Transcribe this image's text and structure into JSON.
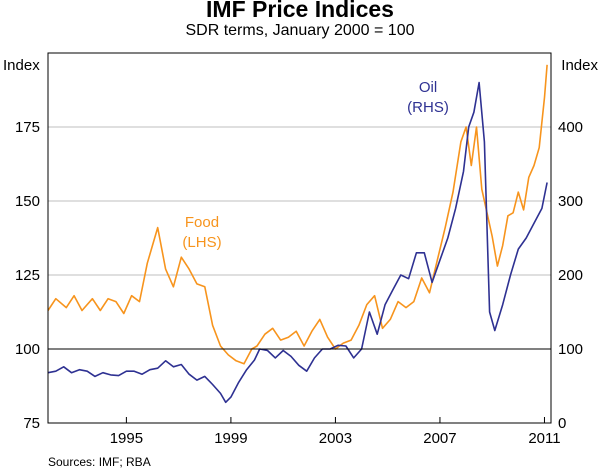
{
  "header": {
    "title": "IMF Price Indices",
    "subtitle": "SDR terms, January 2000 = 100"
  },
  "footer": {
    "source": "Sources: IMF; RBA"
  },
  "colors": {
    "food": "#f7941d",
    "oil": "#2e3192",
    "axis": "#000000",
    "grid": "#bfbfbf"
  },
  "chart_data": {
    "type": "line",
    "title": "IMF Price Indices",
    "subtitle": "SDR terms, January 2000 = 100",
    "left_axis": {
      "label": "Index",
      "ylim": [
        75,
        200
      ],
      "ticks": [
        75,
        100,
        125,
        150,
        175
      ]
    },
    "right_axis": {
      "label": "Index",
      "ylim": [
        0,
        500
      ],
      "ticks": [
        0,
        100,
        200,
        300,
        400
      ]
    },
    "x_axis": {
      "xlim": [
        1992.0,
        2011.25
      ],
      "ticks": [
        1995,
        1999,
        2003,
        2007,
        2011
      ]
    },
    "grid": "horizontal",
    "reference_line": 100,
    "series": [
      {
        "name": "Food",
        "label_line1": "Food",
        "label_line2": "(LHS)",
        "axis": "left",
        "x": [
          1992.0,
          1992.3,
          1992.7,
          1993.0,
          1993.3,
          1993.7,
          1994.0,
          1994.3,
          1994.6,
          1994.9,
          1995.2,
          1995.5,
          1995.8,
          1996.0,
          1996.2,
          1996.5,
          1996.8,
          1997.1,
          1997.4,
          1997.7,
          1998.0,
          1998.3,
          1998.6,
          1998.9,
          1999.2,
          1999.5,
          1999.8,
          2000.0,
          2000.3,
          2000.6,
          2000.9,
          2001.2,
          2001.5,
          2001.8,
          2002.1,
          2002.4,
          2002.7,
          2003.0,
          2003.3,
          2003.6,
          2003.9,
          2004.2,
          2004.5,
          2004.8,
          2005.1,
          2005.4,
          2005.7,
          2006.0,
          2006.3,
          2006.6,
          2006.9,
          2007.2,
          2007.5,
          2007.8,
          2008.0,
          2008.2,
          2008.4,
          2008.6,
          2008.8,
          2009.0,
          2009.2,
          2009.4,
          2009.6,
          2009.8,
          2010.0,
          2010.2,
          2010.4,
          2010.6,
          2010.8,
          2011.0,
          2011.1
        ],
        "values": [
          113,
          117,
          114,
          118,
          113,
          117,
          113,
          117,
          116,
          112,
          118,
          116,
          129,
          135,
          141,
          127,
          121,
          131,
          127,
          122,
          121,
          108,
          101,
          98,
          96,
          95,
          100,
          101,
          105,
          107,
          103,
          104,
          106,
          101,
          106,
          110,
          104,
          100,
          102,
          103,
          108,
          115,
          118,
          107,
          110,
          116,
          114,
          116,
          124,
          119,
          130,
          141,
          153,
          170,
          175,
          162,
          175,
          154,
          146,
          138,
          128,
          135,
          145,
          146,
          153,
          147,
          158,
          162,
          168,
          185,
          196
        ]
      },
      {
        "name": "Oil",
        "label_line1": "Oil",
        "label_line2": "(RHS)",
        "axis": "right",
        "x": [
          1992.0,
          1992.3,
          1992.6,
          1992.9,
          1993.2,
          1993.5,
          1993.8,
          1994.1,
          1994.4,
          1994.7,
          1995.0,
          1995.3,
          1995.6,
          1995.9,
          1996.2,
          1996.5,
          1996.8,
          1997.1,
          1997.4,
          1997.7,
          1998.0,
          1998.3,
          1998.6,
          1998.8,
          1999.0,
          1999.3,
          1999.6,
          1999.9,
          2000.1,
          2000.4,
          2000.7,
          2001.0,
          2001.3,
          2001.6,
          2001.9,
          2002.2,
          2002.5,
          2002.8,
          2003.1,
          2003.4,
          2003.7,
          2004.0,
          2004.3,
          2004.6,
          2004.9,
          2005.2,
          2005.5,
          2005.8,
          2006.1,
          2006.4,
          2006.7,
          2007.0,
          2007.3,
          2007.6,
          2007.9,
          2008.1,
          2008.3,
          2008.5,
          2008.7,
          2008.9,
          2009.1,
          2009.4,
          2009.7,
          2010.0,
          2010.3,
          2010.6,
          2010.9,
          2011.1
        ],
        "values": [
          68,
          70,
          76,
          68,
          72,
          70,
          63,
          68,
          65,
          64,
          70,
          70,
          66,
          72,
          74,
          84,
          76,
          79,
          66,
          58,
          63,
          52,
          40,
          28,
          35,
          55,
          72,
          85,
          100,
          98,
          88,
          98,
          90,
          78,
          70,
          88,
          100,
          100,
          105,
          104,
          88,
          100,
          150,
          120,
          160,
          180,
          200,
          195,
          230,
          230,
          190,
          220,
          250,
          290,
          340,
          400,
          420,
          460,
          380,
          150,
          125,
          160,
          200,
          235,
          250,
          270,
          290,
          325
        ]
      }
    ]
  }
}
